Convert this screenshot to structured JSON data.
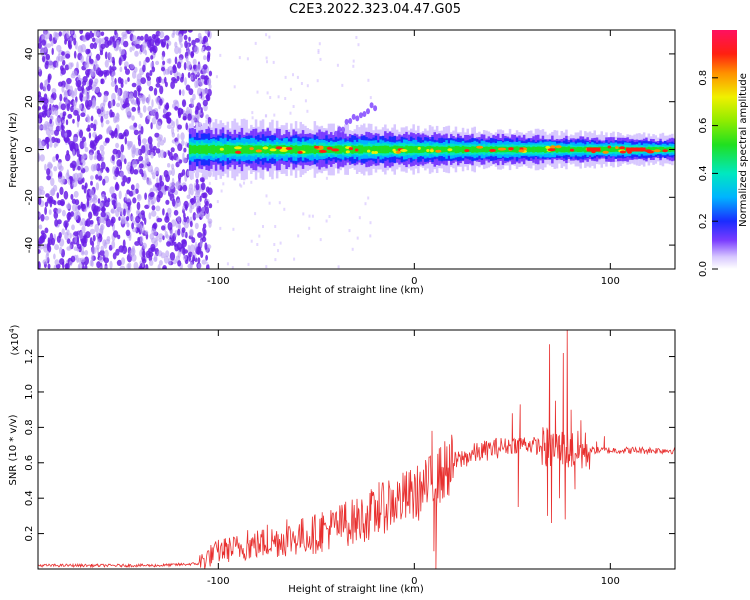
{
  "title": "C2E3.2022.323.04.47.G05",
  "colors": {
    "accent": "#e8302f",
    "spectrum_base": "#6a1fe6"
  },
  "chart_data": [
    {
      "type": "heatmap",
      "xlabel": "Height of straight line (km)",
      "ylabel": "Frequency (Hz)",
      "xlim": [
        -192,
        133
      ],
      "ylim": [
        -50,
        50
      ],
      "x_ticks": [
        {
          "value": -100,
          "label": "-100"
        },
        {
          "value": 0,
          "label": "0"
        },
        {
          "value": 100,
          "label": "100"
        }
      ],
      "y_ticks": [
        {
          "value": -40,
          "label": "-40"
        },
        {
          "value": -20,
          "label": "-20"
        },
        {
          "value": 0,
          "label": "0"
        },
        {
          "value": 20,
          "label": "20"
        },
        {
          "value": 40,
          "label": "40"
        }
      ],
      "colorbar": {
        "label": "Normalized spectral amplitude",
        "range": [
          0.0,
          1.0
        ],
        "ticks": [
          {
            "value": 0.0,
            "label": "0.0"
          },
          {
            "value": 0.2,
            "label": "0.2"
          },
          {
            "value": 0.4,
            "label": "0.4"
          },
          {
            "value": 0.6,
            "label": "0.6"
          },
          {
            "value": 0.8,
            "label": "0.8"
          }
        ]
      },
      "features": {
        "noise_region_x": [
          -192,
          -112
        ],
        "signal_band_x": [
          -115,
          133
        ],
        "signal_center_freq": 0,
        "signal_halfwidth_hz_start": 6,
        "signal_halfwidth_hz_end": 3,
        "streak": {
          "x": [
            -40,
            -20
          ],
          "freq": [
            8,
            18
          ]
        }
      }
    },
    {
      "type": "line",
      "xlabel": "Height of straight line (km)",
      "ylabel": "SNR (10 * v/v)",
      "y_scale_label": "(x10",
      "y_scale_exp": "4",
      "y_scale_close": ")",
      "xlim": [
        -192,
        133
      ],
      "ylim": [
        0,
        1.35
      ],
      "x_ticks": [
        {
          "value": -100,
          "label": "-100"
        },
        {
          "value": 0,
          "label": "0"
        },
        {
          "value": 100,
          "label": "100"
        }
      ],
      "y_ticks": [
        {
          "value": 0.2,
          "label": "0.2"
        },
        {
          "value": 0.4,
          "label": "0.4"
        },
        {
          "value": 0.6,
          "label": "0.6"
        },
        {
          "value": 0.8,
          "label": "0.8"
        },
        {
          "value": 1.0,
          "label": "1.0"
        },
        {
          "value": 1.2,
          "label": "1.2"
        }
      ],
      "series": [
        {
          "color": "#e8302f",
          "x": [
            -192,
            -160,
            -130,
            -110,
            -105,
            -100,
            -90,
            -80,
            -70,
            -60,
            -50,
            -40,
            -30,
            -20,
            -15,
            -10,
            -5,
            0,
            5,
            10,
            15,
            20,
            30,
            40,
            50,
            55,
            60,
            65,
            70,
            75,
            80,
            85,
            90,
            100,
            110,
            120,
            133
          ],
          "values": [
            0.02,
            0.02,
            0.02,
            0.03,
            0.07,
            0.1,
            0.12,
            0.14,
            0.16,
            0.18,
            0.2,
            0.24,
            0.27,
            0.31,
            0.35,
            0.38,
            0.4,
            0.42,
            0.45,
            0.5,
            0.55,
            0.6,
            0.65,
            0.68,
            0.7,
            0.71,
            0.7,
            0.69,
            0.68,
            0.68,
            0.67,
            0.66,
            0.67,
            0.67,
            0.67,
            0.67,
            0.67
          ],
          "spikes": [
            {
              "x": -97,
              "value": 0.17
            },
            {
              "x": -85,
              "value": 0.22
            },
            {
              "x": -75,
              "value": 0.25
            },
            {
              "x": -65,
              "value": 0.28
            },
            {
              "x": -47,
              "value": 0.32
            },
            {
              "x": -35,
              "value": 0.38
            },
            {
              "x": -27,
              "value": 0.34
            },
            {
              "x": -22,
              "value": 0.45
            },
            {
              "x": -18,
              "value": 0.49
            },
            {
              "x": -13,
              "value": 0.5
            },
            {
              "x": 9,
              "value": 0.78
            },
            {
              "x": 10,
              "value": 0.1
            },
            {
              "x": 11,
              "value": 0.0
            },
            {
              "x": 12,
              "value": 0.65
            },
            {
              "x": 50,
              "value": 0.88
            },
            {
              "x": 53,
              "value": 0.35
            },
            {
              "x": 54,
              "value": 0.93
            },
            {
              "x": 66,
              "value": 0.78
            },
            {
              "x": 68,
              "value": 0.3
            },
            {
              "x": 69,
              "value": 1.27
            },
            {
              "x": 70,
              "value": 0.26
            },
            {
              "x": 72,
              "value": 0.95
            },
            {
              "x": 74,
              "value": 0.4
            },
            {
              "x": 76,
              "value": 1.22
            },
            {
              "x": 77,
              "value": 0.28
            },
            {
              "x": 78,
              "value": 1.35
            },
            {
              "x": 80,
              "value": 0.9
            },
            {
              "x": 82,
              "value": 0.45
            },
            {
              "x": 85,
              "value": 0.84
            },
            {
              "x": 93,
              "value": 0.72
            },
            {
              "x": 97,
              "value": 0.75
            }
          ]
        }
      ]
    }
  ]
}
